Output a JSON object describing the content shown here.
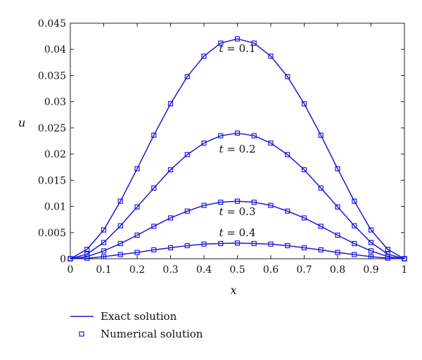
{
  "chart_data": {
    "type": "line",
    "xlabel": "x",
    "ylabel": "u",
    "xlim": [
      0,
      1
    ],
    "ylim": [
      0,
      0.045
    ],
    "x_ticks": [
      "0",
      "0.1",
      "0.2",
      "0.3",
      "0.4",
      "0.5",
      "0.6",
      "0.7",
      "0.8",
      "0.9",
      "1"
    ],
    "y_ticks": [
      "0",
      "0.005",
      "0.01",
      "0.015",
      "0.02",
      "0.025",
      "0.03",
      "0.035",
      "0.04",
      "0.045"
    ],
    "grid": false,
    "legend_position": "below",
    "legend": [
      {
        "label": "Exact solution",
        "style": "line"
      },
      {
        "label": "Numerical solution",
        "style": "square-marker"
      }
    ],
    "series_color": "#1a1adb",
    "x": [
      0,
      0.05,
      0.1,
      0.15,
      0.2,
      0.25,
      0.3,
      0.35,
      0.4,
      0.45,
      0.5,
      0.55,
      0.6,
      0.65,
      0.7,
      0.75,
      0.8,
      0.85,
      0.9,
      0.95,
      1
    ],
    "series": [
      {
        "values": [
          0,
          0.0018,
          0.0055,
          0.011,
          0.0172,
          0.0236,
          0.0296,
          0.0348,
          0.0387,
          0.0412,
          0.042,
          0.0412,
          0.0387,
          0.0348,
          0.0296,
          0.0236,
          0.0172,
          0.011,
          0.0055,
          0.0018,
          0
        ]
      },
      {
        "values": [
          0,
          0.0009,
          0.0031,
          0.0063,
          0.0099,
          0.0135,
          0.017,
          0.0199,
          0.0221,
          0.0235,
          0.024,
          0.0235,
          0.0221,
          0.0199,
          0.017,
          0.0135,
          0.0099,
          0.0063,
          0.0031,
          0.0009,
          0
        ]
      },
      {
        "values": [
          0,
          0.0004,
          0.0015,
          0.0029,
          0.0045,
          0.0062,
          0.0078,
          0.0091,
          0.0102,
          0.0108,
          0.011,
          0.0108,
          0.0102,
          0.0091,
          0.0078,
          0.0062,
          0.0045,
          0.0029,
          0.0015,
          0.0004,
          0
        ]
      },
      {
        "values": [
          0,
          0.0001,
          0.0004,
          0.0008,
          0.0012,
          0.0017,
          0.0021,
          0.0025,
          0.0028,
          0.0029,
          0.003,
          0.0029,
          0.0028,
          0.0025,
          0.0021,
          0.0017,
          0.0012,
          0.0008,
          0.0004,
          0.0001,
          0
        ]
      }
    ],
    "annotations": [
      {
        "text": "t = 0.1",
        "x": 0.5,
        "y": 0.0395
      },
      {
        "text": "t = 0.2",
        "x": 0.5,
        "y": 0.0203
      },
      {
        "text": "t = 0.3",
        "x": 0.5,
        "y": 0.0083
      },
      {
        "text": "t = 0.4",
        "x": 0.5,
        "y": 0.0043
      }
    ]
  }
}
